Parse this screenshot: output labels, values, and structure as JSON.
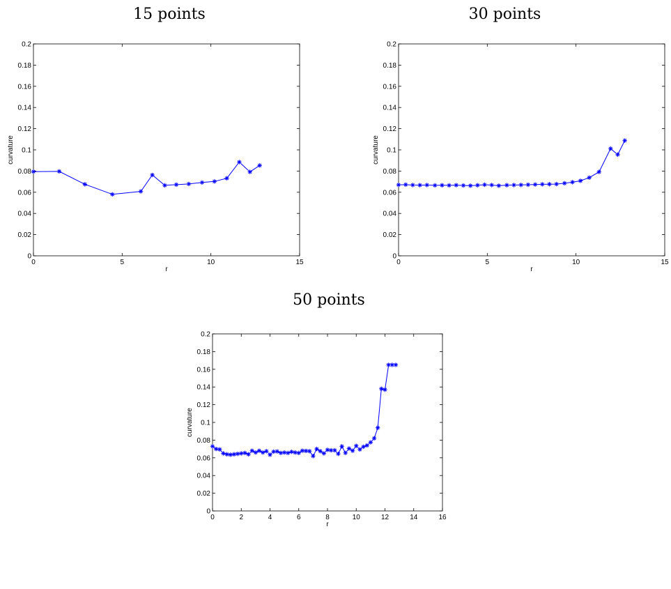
{
  "chart_data": [
    {
      "type": "line",
      "title": "15 points",
      "xlabel": "r",
      "ylabel": "curvature",
      "xlim": [
        0,
        15
      ],
      "ylim": [
        0,
        0.2
      ],
      "xticks": [
        0,
        5,
        10,
        15
      ],
      "yticks": [
        0,
        0.02,
        0.04,
        0.06,
        0.08,
        0.1,
        0.12,
        0.14,
        0.16,
        0.18,
        0.2
      ],
      "xtick_labels": [
        "0",
        "5",
        "10",
        "15"
      ],
      "ytick_labels": [
        "0",
        "0.02",
        "0.04",
        "0.06",
        "0.08",
        "0.1",
        "0.12",
        "0.14",
        "0.16",
        "0.18",
        "0.2"
      ],
      "marker": "asterisk",
      "color": "#0000ff",
      "series": [
        {
          "x": [
            0,
            1.45,
            2.9,
            4.45,
            6.05,
            6.7,
            7.4,
            8.05,
            8.75,
            9.5,
            10.2,
            10.9,
            11.6,
            12.2,
            12.75
          ],
          "y": [
            0.0795,
            0.0797,
            0.0675,
            0.058,
            0.0608,
            0.0763,
            0.0665,
            0.0672,
            0.0678,
            0.0692,
            0.0702,
            0.0732,
            0.0885,
            0.0792,
            0.0853
          ]
        }
      ]
    },
    {
      "type": "line",
      "title": "30 points",
      "xlabel": "r",
      "ylabel": "curvature",
      "xlim": [
        0,
        15
      ],
      "ylim": [
        0,
        0.2
      ],
      "xticks": [
        0,
        5,
        10,
        15
      ],
      "yticks": [
        0,
        0.02,
        0.04,
        0.06,
        0.08,
        0.1,
        0.12,
        0.14,
        0.16,
        0.18,
        0.2
      ],
      "xtick_labels": [
        "0",
        "5",
        "10",
        "15"
      ],
      "ytick_labels": [
        "0",
        "0.02",
        "0.04",
        "0.06",
        "0.08",
        "0.1",
        "0.12",
        "0.14",
        "0.16",
        "0.18",
        "0.2"
      ],
      "marker": "asterisk",
      "color": "#0000ff",
      "series": [
        {
          "x": [
            0,
            0.4,
            0.8,
            1.2,
            1.6,
            2.05,
            2.45,
            2.85,
            3.25,
            3.65,
            4.05,
            4.45,
            4.85,
            5.25,
            5.65,
            6.1,
            6.5,
            6.9,
            7.3,
            7.7,
            8.1,
            8.5,
            8.9,
            9.35,
            9.8,
            10.25,
            10.75,
            11.3,
            11.95,
            12.35,
            12.75
          ],
          "y": [
            0.067,
            0.0672,
            0.0668,
            0.0667,
            0.0668,
            0.0665,
            0.0666,
            0.0665,
            0.0667,
            0.0664,
            0.0662,
            0.0666,
            0.0671,
            0.0668,
            0.0662,
            0.0667,
            0.0668,
            0.0669,
            0.0671,
            0.0673,
            0.0675,
            0.0676,
            0.0677,
            0.0685,
            0.0695,
            0.0708,
            0.0738,
            0.0792,
            0.1012,
            0.0955,
            0.1088
          ]
        }
      ]
    },
    {
      "type": "line",
      "title": "50 points",
      "xlabel": "r",
      "ylabel": "curvature",
      "xlim": [
        0,
        16
      ],
      "ylim": [
        0,
        0.2
      ],
      "xticks": [
        0,
        2,
        4,
        6,
        8,
        10,
        12,
        14,
        16
      ],
      "yticks": [
        0,
        0.02,
        0.04,
        0.06,
        0.08,
        0.1,
        0.12,
        0.14,
        0.16,
        0.18,
        0.2
      ],
      "xtick_labels": [
        "0",
        "2",
        "4",
        "6",
        "8",
        "10",
        "12",
        "14",
        "16"
      ],
      "ytick_labels": [
        "0",
        "0.02",
        "0.04",
        "0.06",
        "0.08",
        "0.1",
        "0.12",
        "0.14",
        "0.16",
        "0.18",
        "0.2"
      ],
      "marker": "asterisk",
      "color": "#0000ff",
      "series": [
        {
          "x": [
            0,
            0.25,
            0.5,
            0.75,
            1.0,
            1.25,
            1.5,
            1.75,
            2.0,
            2.25,
            2.5,
            2.75,
            3.0,
            3.25,
            3.5,
            3.75,
            4.0,
            4.25,
            4.5,
            4.75,
            5.0,
            5.25,
            5.5,
            5.75,
            6.0,
            6.25,
            6.5,
            6.75,
            7.0,
            7.25,
            7.5,
            7.75,
            8.0,
            8.25,
            8.5,
            8.75,
            9.0,
            9.25,
            9.5,
            9.75,
            10.0,
            10.25,
            10.5,
            10.75,
            11.0,
            11.25,
            11.5,
            11.75,
            12.0,
            12.25,
            12.5,
            12.75
          ],
          "y": [
            0.073,
            0.07,
            0.0695,
            0.065,
            0.064,
            0.0635,
            0.064,
            0.0645,
            0.065,
            0.0655,
            0.064,
            0.068,
            0.066,
            0.068,
            0.066,
            0.0675,
            0.0635,
            0.067,
            0.0672,
            0.0655,
            0.066,
            0.0655,
            0.0668,
            0.066,
            0.0655,
            0.068,
            0.0678,
            0.0675,
            0.062,
            0.07,
            0.0675,
            0.065,
            0.069,
            0.0685,
            0.0685,
            0.0645,
            0.073,
            0.0655,
            0.0705,
            0.068,
            0.0735,
            0.0695,
            0.0725,
            0.074,
            0.0775,
            0.082,
            0.094,
            0.138,
            0.137,
            0.165,
            0.165,
            0.165
          ]
        }
      ]
    }
  ]
}
